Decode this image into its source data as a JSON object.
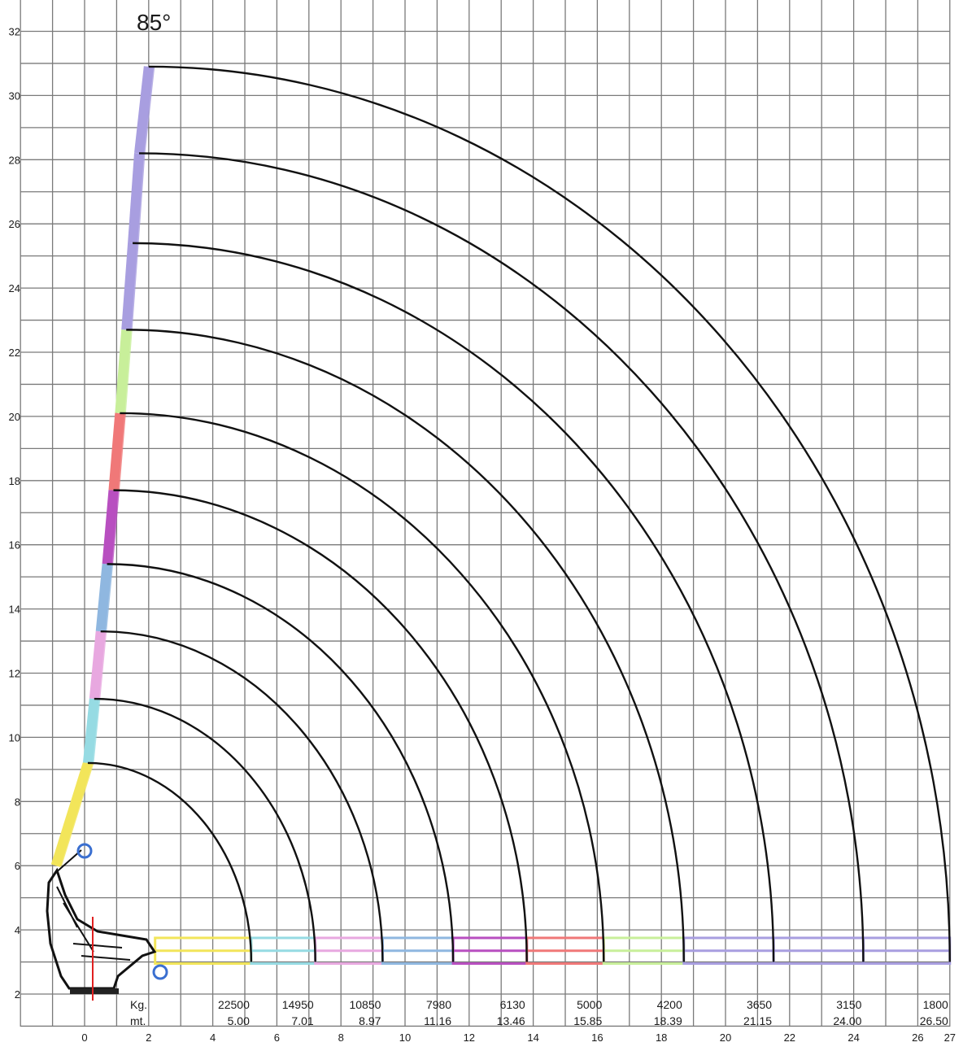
{
  "chart_data": {
    "type": "line",
    "title": "85°",
    "xlabel": "",
    "ylabel": "",
    "xlim": [
      -2,
      27
    ],
    "ylim": [
      1,
      33
    ],
    "grid": true,
    "x_ticks": [
      "0",
      "2",
      "4",
      "6",
      "8",
      "10",
      "12",
      "14",
      "16",
      "18",
      "20",
      "22",
      "24",
      "26",
      "27"
    ],
    "y_ticks": [
      "2",
      "4",
      "6",
      "8",
      "10",
      "12",
      "14",
      "16",
      "18",
      "20",
      "22",
      "24",
      "26",
      "28",
      "30",
      "32"
    ],
    "table_labels": {
      "load_label": "Kg.",
      "reach_label": "mt."
    },
    "series": [
      {
        "load": "22500",
        "reach": "5.00",
        "tip": [
          0.1,
          9.2
        ],
        "end_x": 5.2,
        "color": "#f2e55a"
      },
      {
        "load": "14950",
        "reach": "7.01",
        "tip": [
          0.3,
          11.2
        ],
        "end_x": 7.2,
        "color": "#96dbe3"
      },
      {
        "load": "10850",
        "reach": "8.97",
        "tip": [
          0.5,
          13.3
        ],
        "end_x": 9.3,
        "color": "#e8a8e0"
      },
      {
        "load": "7980",
        "reach": "11.16",
        "tip": [
          0.7,
          15.4
        ],
        "end_x": 11.5,
        "color": "#8fb7e0"
      },
      {
        "load": "6130",
        "reach": "13.46",
        "tip": [
          0.9,
          17.7
        ],
        "end_x": 13.8,
        "color": "#b84fc0"
      },
      {
        "load": "5000",
        "reach": "15.85",
        "tip": [
          1.1,
          20.1
        ],
        "end_x": 16.2,
        "color": "#f07878"
      },
      {
        "load": "4200",
        "reach": "18.39",
        "tip": [
          1.3,
          22.7
        ],
        "end_x": 18.7,
        "color": "#c8ef9a"
      },
      {
        "load": "3650",
        "reach": "21.15",
        "tip": [
          1.5,
          25.4
        ],
        "end_x": 21.5,
        "color": "#a89ee0"
      },
      {
        "load": "3150",
        "reach": "24.00",
        "tip": [
          1.7,
          28.2
        ],
        "end_x": 24.3,
        "color": "#a89ee0"
      },
      {
        "load": "1800",
        "reach": "26.50",
        "tip": [
          2.0,
          30.9
        ],
        "end_x": 27.0,
        "color": "#a89ee0"
      }
    ]
  }
}
